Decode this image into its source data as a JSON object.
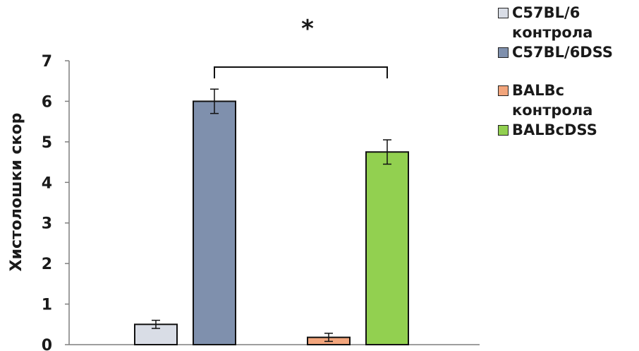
{
  "chart_data": {
    "type": "bar",
    "ylabel": "Хистолошки скор",
    "ylim": [
      0,
      7
    ],
    "yticks": [
      0,
      1,
      2,
      3,
      4,
      5,
      6,
      7
    ],
    "series": [
      {
        "name": "C57BL/6 контрола",
        "value": 0.5,
        "error": 0.1,
        "color": "#d9dde6"
      },
      {
        "name": "C57BL/6DSS",
        "value": 6.0,
        "error": 0.3,
        "color": "#7f90ad"
      },
      {
        "name": "BALBc контрола",
        "value": 0.18,
        "error": 0.1,
        "color": "#f2a57c"
      },
      {
        "name": "BALBcDSS",
        "value": 4.75,
        "error": 0.3,
        "color": "#92d050"
      }
    ],
    "significance": {
      "label": "*",
      "between": [
        "C57BL/6DSS",
        "BALBcDSS"
      ]
    },
    "legend_position": "top-right",
    "grid": false
  },
  "legend": {
    "items": [
      {
        "text": "C57BL/6\nконтрола",
        "color": "#d9dde6"
      },
      {
        "text": "C57BL/6DSS",
        "color": "#7f90ad"
      },
      {
        "text": "BALBc\nконтрола",
        "color": "#f2a57c"
      },
      {
        "text": "BALBcDSS",
        "color": "#92d050"
      }
    ]
  }
}
